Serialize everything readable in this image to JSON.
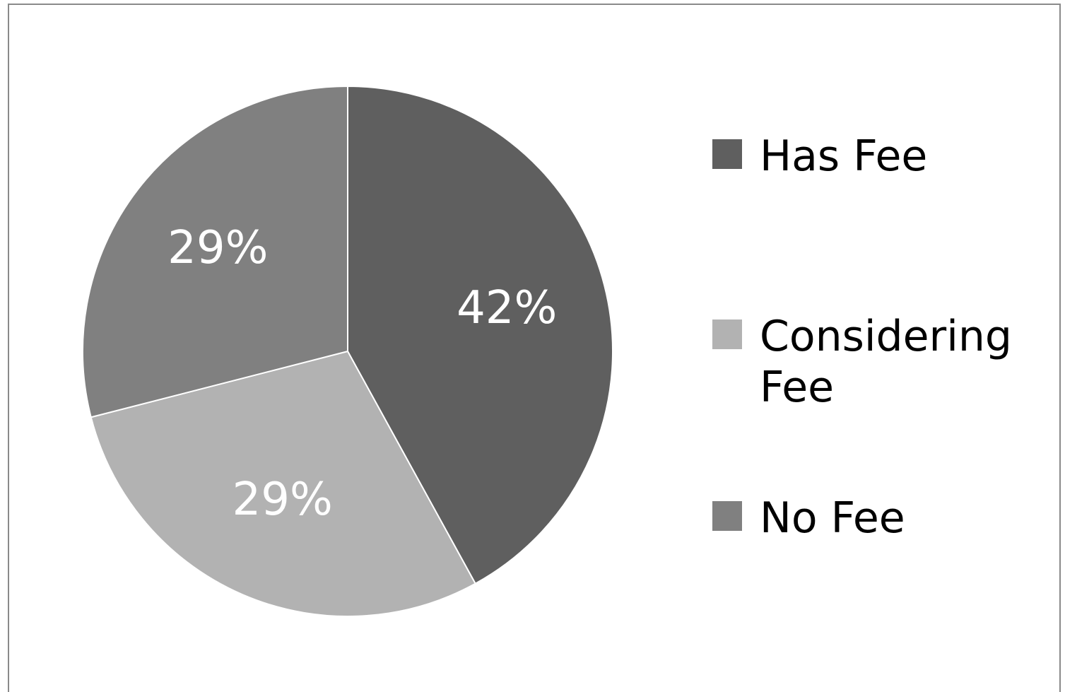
{
  "chart_data": {
    "type": "pie",
    "categories": [
      "Has Fee",
      "Considering Fee",
      "No Fee"
    ],
    "values": [
      42,
      29,
      29
    ],
    "value_labels": [
      "42%",
      "29%",
      "29%"
    ],
    "colors": [
      "#5f5f5f",
      "#b2b2b2",
      "#808080"
    ],
    "legend": "right"
  }
}
